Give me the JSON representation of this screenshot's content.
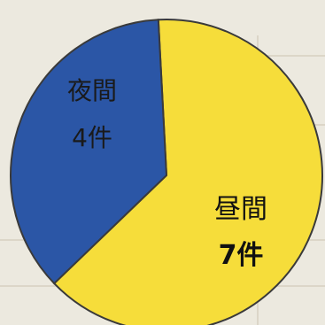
{
  "chart_data": {
    "type": "pie",
    "title": "",
    "slices": [
      {
        "label": "昼間",
        "count_label": "7件",
        "value": 7,
        "color": "#f6dd3a",
        "text_color": "#111111"
      },
      {
        "label": "夜間",
        "count_label": "4件",
        "value": 4,
        "color": "#2b56a6",
        "text_color": "#1a1a1a"
      }
    ],
    "start_angle_deg": -3,
    "direction": "clockwise",
    "legend": "none",
    "outline_color": "#3a3a3a"
  }
}
